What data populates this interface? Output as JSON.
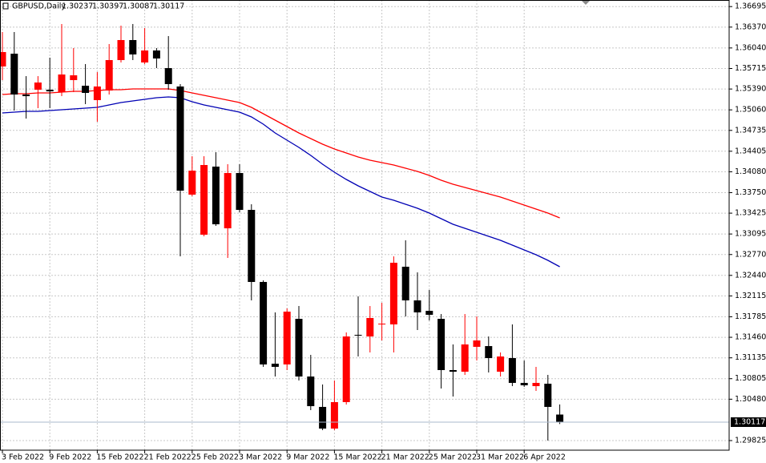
{
  "chart_data": {
    "type": "candlestick",
    "title": "GBPUSD,Daily",
    "categories": [
      "3 Feb 2022",
      null,
      null,
      null,
      "9 Feb 2022",
      null,
      null,
      null,
      "15 Feb 2022",
      null,
      null,
      null,
      "21 Feb 2022",
      null,
      null,
      null,
      "25 Feb 2022",
      null,
      null,
      null,
      "3 Mar 2022",
      null,
      null,
      null,
      "9 Mar 2022",
      null,
      null,
      null,
      "15 Mar 2022",
      null,
      null,
      null,
      "21 Mar 2022",
      null,
      null,
      null,
      "25 Mar 2022",
      null,
      null,
      null,
      "31 Mar 2022",
      null,
      null,
      null,
      "6 Apr 2022",
      null,
      null,
      null
    ],
    "open": [
      1.35747,
      1.35949,
      1.35303,
      1.35379,
      1.35379,
      1.35341,
      1.35531,
      1.35442,
      1.35214,
      1.35366,
      1.35848,
      1.36165,
      1.3581,
      1.36,
      1.35721,
      1.3543,
      1.33718,
      1.33084,
      1.34162,
      1.33185,
      1.3406,
      1.33477,
      1.32336,
      1.31042,
      1.3103,
      1.31752,
      1.30839,
      1.30358,
      1.30015,
      1.30434,
      1.31499,
      1.31473,
      1.31664,
      1.31664,
      1.32577,
      1.32044,
      1.31879,
      1.31752,
      1.30941,
      1.30915,
      1.31309,
      1.31321,
      1.30915,
      1.31131,
      1.30738,
      1.30687,
      1.30725,
      1.30237
    ],
    "high": [
      1.36292,
      1.36292,
      1.35594,
      1.35594,
      1.35886,
      1.36419,
      1.36038,
      1.35785,
      1.35658,
      1.36102,
      1.36393,
      1.36419,
      1.36355,
      1.36038,
      1.36228,
      1.35468,
      1.34326,
      1.34326,
      1.3439,
      1.342,
      1.342,
      1.33566,
      1.32361,
      1.31854,
      1.31917,
      1.31955,
      1.31182,
      1.30713,
      1.30776,
      1.31537,
      1.32107,
      1.31955,
      1.32006,
      1.32741,
      1.32995,
      1.32488,
      1.32209,
      1.31828,
      1.31347,
      1.31828,
      1.3179,
      1.31473,
      1.3122,
      1.31664,
      1.31093,
      1.30992,
      1.30865,
      1.30397
    ],
    "low": [
      1.35531,
      1.35049,
      1.34922,
      1.35087,
      1.35087,
      1.35277,
      1.35341,
      1.35151,
      1.34872,
      1.35303,
      1.3581,
      1.35848,
      1.35785,
      1.35721,
      1.35379,
      1.32741,
      1.33692,
      1.33058,
      1.33223,
      1.32716,
      1.33439,
      1.32044,
      1.30992,
      1.30839,
      1.30941,
      1.30776,
      1.30307,
      1.2999,
      1.2999,
      1.30396,
      1.31156,
      1.3122,
      1.3141,
      1.3122,
      1.3179,
      1.31575,
      1.31727,
      1.30649,
      1.30522,
      1.30865,
      1.31093,
      1.30903,
      1.30839,
      1.30687,
      1.30675,
      1.30611,
      1.29825,
      1.30087
    ],
    "close": [
      1.35975,
      1.35303,
      1.35277,
      1.35493,
      1.35353,
      1.3562,
      1.35607,
      1.35328,
      1.3543,
      1.35848,
      1.36165,
      1.35937,
      1.36,
      1.35873,
      1.35468,
      1.33781,
      1.34098,
      1.34187,
      1.33249,
      1.3406,
      1.33477,
      1.32336,
      1.3103,
      1.30992,
      1.31866,
      1.30839,
      1.3037,
      1.30015,
      1.30434,
      1.31473,
      1.31486,
      1.31765,
      1.31676,
      1.3264,
      1.32044,
      1.31854,
      1.31816,
      1.30941,
      1.30915,
      1.31347,
      1.3141,
      1.31131,
      1.31156,
      1.30738,
      1.307,
      1.30738,
      1.30358,
      1.30117
    ],
    "up_color": "#ff0000",
    "down_color": "#000000",
    "lines": [
      {
        "color": "#ff0000",
        "values": [
          1.35303,
          1.35315,
          1.35315,
          1.35328,
          1.35328,
          1.35341,
          1.35353,
          1.35353,
          1.35366,
          1.35379,
          1.35379,
          1.35392,
          1.35392,
          1.35392,
          1.35392,
          1.35366,
          1.35328,
          1.3529,
          1.35252,
          1.35214,
          1.35176,
          1.351,
          1.34998,
          1.34897,
          1.34796,
          1.34694,
          1.34605,
          1.34517,
          1.34441,
          1.34377,
          1.34314,
          1.34263,
          1.34225,
          1.34187,
          1.34136,
          1.34085,
          1.34022,
          1.33946,
          1.33883,
          1.33832,
          1.33781,
          1.3373,
          1.3368,
          1.33616,
          1.33553,
          1.3349,
          1.33426,
          1.3335
        ]
      },
      {
        "color": "#0000b4",
        "values": [
          1.35011,
          1.35024,
          1.35036,
          1.35036,
          1.35049,
          1.35062,
          1.35075,
          1.35087,
          1.351,
          1.35138,
          1.35176,
          1.35201,
          1.35227,
          1.35252,
          1.35265,
          1.35252,
          1.35189,
          1.35138,
          1.351,
          1.35062,
          1.35024,
          1.34948,
          1.34834,
          1.34694,
          1.3458,
          1.34466,
          1.34339,
          1.342,
          1.34073,
          1.33959,
          1.33857,
          1.33768,
          1.3368,
          1.33629,
          1.33566,
          1.33502,
          1.33426,
          1.33337,
          1.33249,
          1.33185,
          1.33122,
          1.33058,
          1.32995,
          1.32919,
          1.32843,
          1.32767,
          1.32678,
          1.32577
        ]
      }
    ],
    "ylim": [
      1.29673,
      1.36799
    ],
    "yticks": [
      1.36695,
      {
        "value": 1.3637,
        "label": "1.36370"
      },
      {
        "value": 1.3604,
        "label": "1.36040"
      },
      1.35715,
      {
        "value": 1.3539,
        "label": "1.35390"
      },
      {
        "value": 1.3506,
        "label": "1.35060"
      },
      1.34735,
      1.34405,
      {
        "value": 1.3408,
        "label": "1.34080"
      },
      {
        "value": 1.3375,
        "label": "1.33750"
      },
      1.33425,
      1.33095,
      {
        "value": 1.3277,
        "label": "1.32770"
      },
      {
        "value": 1.3244,
        "label": "1.32440"
      },
      1.32115,
      1.31785,
      {
        "value": 1.3146,
        "label": "1.31460"
      },
      1.31135,
      1.30805,
      {
        "value": 1.3048,
        "label": "1.30480"
      },
      1.29825
    ],
    "grid": true,
    "grid_color": "#c8c8c8",
    "price_line_color": "#a9b8cc"
  }
}
